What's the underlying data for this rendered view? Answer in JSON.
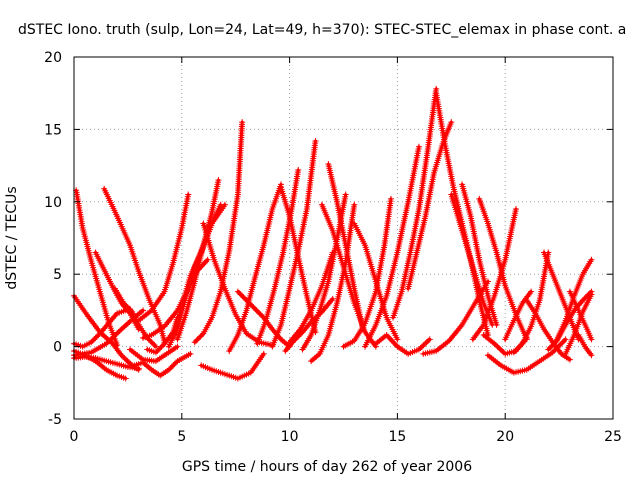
{
  "chart_data": {
    "type": "scatter",
    "title": "dSTEC Iono. truth (sulp, Lon=24, Lat=49, h=370): STEC-STEC_elemax in phase cont. a",
    "xlabel": "GPS time / hours of day 262 of year 2006",
    "ylabel": "dSTEC  / TECUs",
    "xlim": [
      0,
      25
    ],
    "ylim": [
      -5,
      20
    ],
    "x_ticks": [
      0,
      5,
      10,
      15,
      20,
      25
    ],
    "y_ticks": [
      -5,
      0,
      5,
      10,
      15,
      20
    ],
    "x_tick_labels": [
      "0",
      "5",
      "10",
      "15",
      "20",
      "25"
    ],
    "y_tick_labels": [
      "-5",
      "0",
      "5",
      "10",
      "15",
      "20"
    ],
    "grid": true,
    "marker": "plus",
    "color": "#ff0000",
    "series": [
      {
        "x": [
          0.0,
          0.6,
          1.2,
          1.8,
          2.2,
          2.7,
          3.0
        ],
        "y": [
          3.5,
          2.2,
          1.0,
          0.2,
          -0.6,
          -1.3,
          -1.6
        ]
      },
      {
        "x": [
          0.1,
          0.4,
          0.8,
          1.2,
          1.6,
          2.0
        ],
        "y": [
          10.8,
          8.2,
          5.9,
          3.8,
          1.7,
          0.1
        ]
      },
      {
        "x": [
          0.0,
          0.5,
          1.0,
          1.5,
          2.0,
          2.4
        ],
        "y": [
          -0.3,
          -0.6,
          -1.0,
          -1.6,
          -2.0,
          -2.2
        ]
      },
      {
        "x": [
          0.0,
          0.8,
          1.5,
          2.2,
          2.8,
          3.2
        ],
        "y": [
          -0.6,
          -0.4,
          0.2,
          1.2,
          2.0,
          2.5
        ]
      },
      {
        "x": [
          0.0,
          0.4,
          0.8,
          1.2,
          1.6,
          2.0,
          2.6
        ],
        "y": [
          0.2,
          0.0,
          0.3,
          0.9,
          1.6,
          2.3,
          2.6
        ]
      },
      {
        "x": [
          0.0,
          0.5,
          1.0,
          1.5,
          2.0,
          2.5,
          3.0
        ],
        "y": [
          -0.8,
          -0.7,
          -0.8,
          -1.0,
          -1.2,
          -1.4,
          -1.5
        ]
      },
      {
        "x": [
          1.0,
          1.4,
          1.8,
          2.2,
          2.6,
          3.0
        ],
        "y": [
          6.5,
          5.3,
          4.1,
          3.0,
          2.3,
          1.2
        ]
      },
      {
        "x": [
          1.4,
          2.0,
          2.6,
          3.0,
          3.5,
          4.0,
          4.2
        ],
        "y": [
          10.9,
          9.0,
          7.0,
          5.2,
          3.2,
          1.5,
          0.3
        ]
      },
      {
        "x": [
          1.9,
          2.3,
          2.7,
          3.0,
          3.4,
          3.8
        ],
        "y": [
          4.0,
          3.0,
          2.4,
          1.5,
          0.6,
          0.0
        ]
      },
      {
        "x": [
          2.6,
          3.2,
          3.8,
          4.3,
          4.8
        ],
        "y": [
          -0.2,
          -0.9,
          -1.0,
          -0.5,
          0.0
        ]
      },
      {
        "x": [
          3.0,
          3.6,
          4.2,
          4.6,
          5.0,
          5.3
        ],
        "y": [
          1.8,
          2.5,
          3.8,
          5.8,
          8.2,
          10.5
        ]
      },
      {
        "x": [
          3.4,
          3.8,
          4.2,
          4.6,
          4.8
        ],
        "y": [
          -0.2,
          -0.4,
          0.2,
          1.0,
          2.0
        ]
      },
      {
        "x": [
          2.8,
          3.2,
          3.6,
          4.0,
          4.4,
          4.8,
          5.4
        ],
        "y": [
          -1.3,
          -1.1,
          -1.6,
          -2.0,
          -1.6,
          -1.0,
          -0.5
        ]
      },
      {
        "x": [
          3.2,
          3.6,
          4.2,
          4.8,
          5.2,
          5.7,
          6.2
        ],
        "y": [
          0.6,
          0.8,
          1.4,
          2.5,
          3.7,
          5.2,
          6.0
        ]
      },
      {
        "x": [
          4.6,
          5.0,
          5.4,
          5.9,
          6.4,
          6.8
        ],
        "y": [
          0.6,
          2.8,
          4.9,
          6.5,
          8.5,
          9.8
        ]
      },
      {
        "x": [
          4.4,
          4.8,
          5.2,
          5.6,
          6.0,
          6.4,
          7.0
        ],
        "y": [
          0.0,
          1.3,
          3.5,
          5.5,
          7.0,
          8.5,
          9.8
        ]
      },
      {
        "x": [
          4.8,
          5.2,
          5.6,
          6.0,
          6.4,
          6.7
        ],
        "y": [
          0.5,
          2.3,
          4.5,
          7.0,
          9.3,
          11.5
        ]
      },
      {
        "x": [
          5.6,
          6.0,
          6.4,
          6.8,
          7.2,
          7.6,
          7.8
        ],
        "y": [
          0.3,
          0.9,
          2.0,
          3.8,
          6.6,
          10.5,
          15.5
        ]
      },
      {
        "x": [
          5.9,
          6.4,
          7.0,
          7.6,
          8.2,
          8.8
        ],
        "y": [
          -1.3,
          -1.6,
          -1.9,
          -2.2,
          -1.8,
          -0.5
        ]
      },
      {
        "x": [
          6.0,
          6.5,
          7.0,
          7.5,
          8.0,
          8.6,
          9.2
        ],
        "y": [
          8.5,
          6.0,
          4.0,
          2.2,
          0.9,
          0.3,
          0.1
        ]
      },
      {
        "x": [
          7.2,
          7.6,
          8.0,
          8.4,
          8.8,
          9.2,
          9.6
        ],
        "y": [
          -0.3,
          0.8,
          2.5,
          4.8,
          7.0,
          9.5,
          11.2
        ]
      },
      {
        "x": [
          7.6,
          8.0,
          8.4,
          8.8,
          9.2,
          9.6,
          10.0
        ],
        "y": [
          3.8,
          3.2,
          2.6,
          2.0,
          1.2,
          0.5,
          0.0
        ]
      },
      {
        "x": [
          8.5,
          8.9,
          9.3,
          9.7,
          10.1,
          10.4
        ],
        "y": [
          0.2,
          1.8,
          4.0,
          6.5,
          9.5,
          12.2
        ]
      },
      {
        "x": [
          9.2,
          9.6,
          10.0,
          10.4,
          10.8,
          11.2
        ],
        "y": [
          0.0,
          1.5,
          4.0,
          6.6,
          9.5,
          14.2
        ]
      },
      {
        "x": [
          9.6,
          10.0,
          10.4,
          10.8,
          11.2
        ],
        "y": [
          11.0,
          9.0,
          6.2,
          3.5,
          1.0
        ]
      },
      {
        "x": [
          9.8,
          10.2,
          10.6,
          11.0,
          11.5,
          12.0
        ],
        "y": [
          -0.3,
          0.4,
          1.0,
          1.7,
          2.4,
          3.3
        ]
      },
      {
        "x": [
          10.0,
          10.5,
          11.0,
          11.5,
          12.0
        ],
        "y": [
          0.3,
          1.2,
          2.5,
          4.2,
          6.5
        ]
      },
      {
        "x": [
          10.6,
          11.0,
          11.4,
          11.8,
          12.2,
          12.6
        ],
        "y": [
          -0.2,
          0.8,
          2.5,
          4.5,
          7.4,
          10.5
        ]
      },
      {
        "x": [
          11.0,
          11.4,
          11.8,
          12.2,
          12.6,
          13.0
        ],
        "y": [
          -1.0,
          -0.5,
          0.8,
          3.0,
          5.8,
          9.8
        ]
      },
      {
        "x": [
          11.5,
          12.0,
          12.5,
          13.0,
          13.5,
          14.0
        ],
        "y": [
          9.8,
          8.0,
          5.5,
          3.0,
          1.0,
          0.0
        ]
      },
      {
        "x": [
          11.8,
          12.2,
          12.6,
          13.0,
          13.4
        ],
        "y": [
          12.6,
          10.0,
          7.0,
          4.0,
          1.2
        ]
      },
      {
        "x": [
          12.5,
          13.0,
          13.5,
          14.0,
          14.4,
          14.7
        ],
        "y": [
          0.0,
          0.4,
          1.6,
          3.8,
          7.0,
          10.2
        ]
      },
      {
        "x": [
          13.0,
          13.5,
          14.0,
          14.5,
          15.0
        ],
        "y": [
          8.5,
          7.0,
          4.5,
          2.0,
          0.5
        ]
      },
      {
        "x": [
          13.5,
          14.0,
          14.5,
          15.0,
          15.5,
          16.0
        ],
        "y": [
          0.0,
          1.5,
          3.5,
          6.5,
          10.0,
          13.8
        ]
      },
      {
        "x": [
          14.0,
          14.5,
          15.0,
          15.5,
          16.0,
          16.5
        ],
        "y": [
          0.2,
          0.8,
          0.0,
          -0.5,
          -0.2,
          0.5
        ]
      },
      {
        "x": [
          14.8,
          15.2,
          15.6,
          16.0,
          16.4,
          16.8
        ],
        "y": [
          2.0,
          3.8,
          6.5,
          9.5,
          13.5,
          17.8
        ]
      },
      {
        "x": [
          15.5,
          15.9,
          16.3,
          16.7,
          17.1,
          17.5
        ],
        "y": [
          4.0,
          6.5,
          9.0,
          12.0,
          14.0,
          15.5
        ]
      },
      {
        "x": [
          16.2,
          16.8,
          17.4,
          18.0,
          18.6,
          19.2
        ],
        "y": [
          -0.5,
          -0.3,
          0.4,
          1.5,
          3.0,
          4.5
        ]
      },
      {
        "x": [
          16.8,
          17.2,
          17.6,
          18.0,
          18.4,
          18.8,
          19.2
        ],
        "y": [
          17.5,
          14.0,
          11.0,
          8.5,
          6.0,
          3.2,
          0.8
        ]
      },
      {
        "x": [
          17.5,
          18.0,
          18.5,
          19.0,
          19.4
        ],
        "y": [
          10.5,
          8.0,
          5.5,
          3.0,
          1.5
        ]
      },
      {
        "x": [
          18.0,
          18.4,
          18.8,
          19.2,
          19.6
        ],
        "y": [
          11.2,
          9.0,
          6.0,
          3.5,
          1.5
        ]
      },
      {
        "x": [
          18.5,
          19.0,
          19.5,
          20.0,
          20.5
        ],
        "y": [
          0.5,
          1.5,
          3.5,
          6.0,
          9.5
        ]
      },
      {
        "x": [
          18.8,
          19.2,
          19.6,
          20.0,
          20.5,
          21.0
        ],
        "y": [
          10.2,
          8.5,
          6.5,
          4.2,
          2.2,
          0.5
        ]
      },
      {
        "x": [
          19.0,
          19.5,
          20.0,
          20.5,
          21.0
        ],
        "y": [
          0.8,
          0.2,
          -0.5,
          -0.3,
          0.6
        ]
      },
      {
        "x": [
          19.2,
          19.8,
          20.4,
          21.0,
          21.6,
          22.2,
          22.8
        ],
        "y": [
          -0.6,
          -1.3,
          -1.8,
          -1.6,
          -1.0,
          -0.4,
          0.5
        ]
      },
      {
        "x": [
          20.0,
          20.4,
          20.8,
          21.2
        ],
        "y": [
          0.5,
          1.8,
          3.0,
          3.8
        ]
      },
      {
        "x": [
          20.4,
          20.8,
          21.2,
          21.6,
          22.0
        ],
        "y": [
          -0.4,
          0.2,
          1.4,
          3.2,
          6.5
        ]
      },
      {
        "x": [
          21.0,
          21.4,
          21.8,
          22.2,
          22.6,
          23.0
        ],
        "y": [
          3.2,
          2.3,
          1.2,
          0.3,
          -0.5,
          -0.9
        ]
      },
      {
        "x": [
          21.8,
          22.2,
          22.6,
          23.0,
          23.4
        ],
        "y": [
          6.5,
          5.0,
          3.5,
          2.0,
          0.5
        ]
      },
      {
        "x": [
          22.0,
          22.4,
          22.8,
          23.2,
          23.6,
          24.0
        ],
        "y": [
          -0.2,
          0.4,
          1.5,
          2.5,
          3.2,
          3.8
        ]
      },
      {
        "x": [
          22.4,
          22.8,
          23.2,
          23.6,
          24.0
        ],
        "y": [
          0.5,
          1.8,
          3.5,
          5.0,
          6.0
        ]
      },
      {
        "x": [
          22.8,
          23.2,
          23.6,
          24.0
        ],
        "y": [
          -0.5,
          0.8,
          2.4,
          3.6
        ]
      },
      {
        "x": [
          23.0,
          23.4,
          23.8,
          24.0
        ],
        "y": [
          3.8,
          2.5,
          1.2,
          0.5
        ]
      },
      {
        "x": [
          23.4,
          23.7,
          24.0
        ],
        "y": [
          0.8,
          0.0,
          -0.6
        ]
      }
    ]
  }
}
